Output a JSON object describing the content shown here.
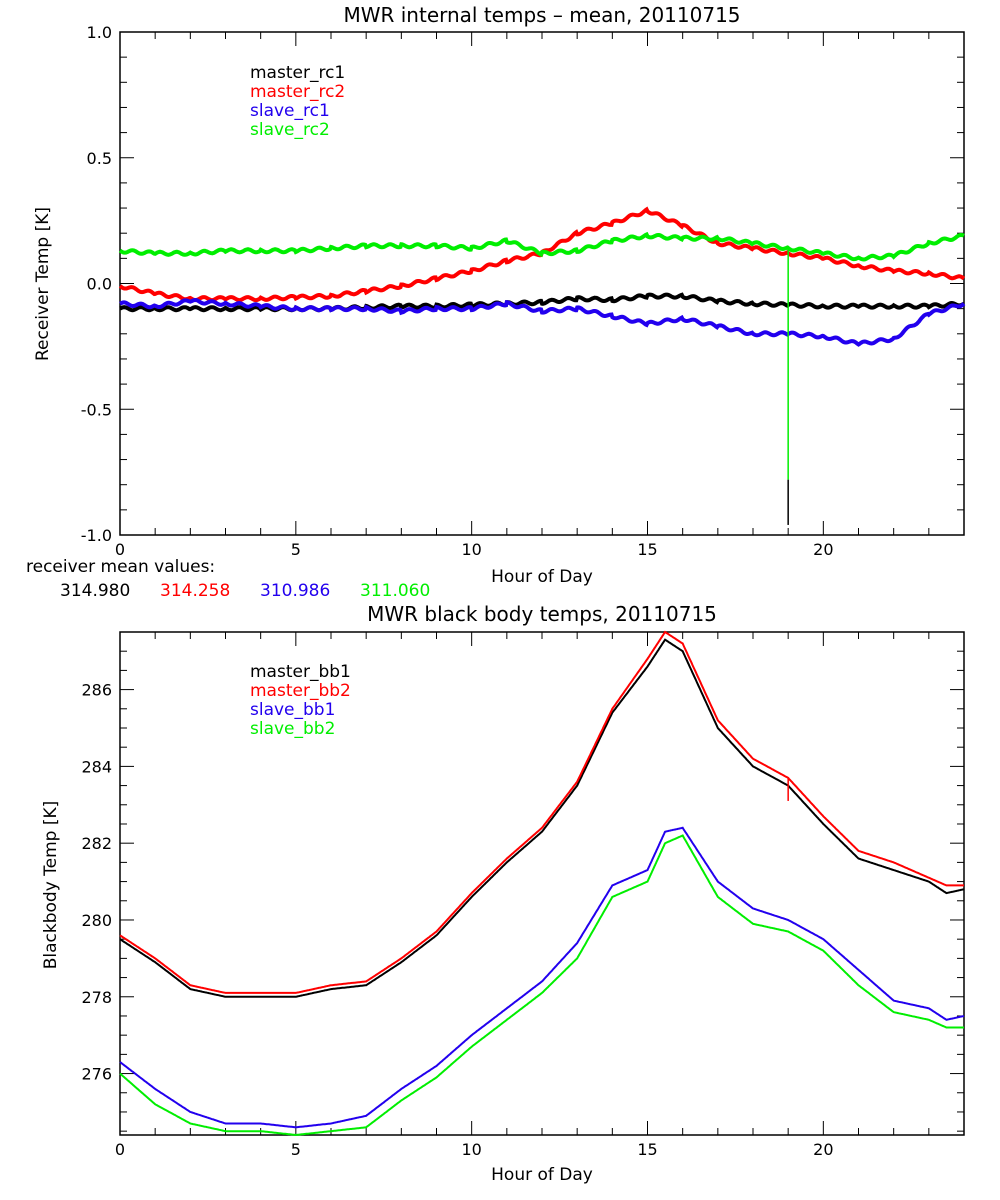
{
  "chart_data": [
    {
      "type": "line",
      "title": "MWR internal temps – mean, 20110715",
      "xlabel": "Hour of Day",
      "ylabel": "Receiver Temp [K]",
      "xlim": [
        0,
        24
      ],
      "ylim": [
        -1.0,
        1.0
      ],
      "xticks": [
        "0",
        "5",
        "10",
        "15",
        "20"
      ],
      "xtick_values": [
        0,
        5,
        10,
        15,
        20
      ],
      "yticks": [
        "-1.0",
        "-0.5",
        "0.0",
        "0.5",
        "1.0"
      ],
      "ytick_values": [
        -1.0,
        -0.5,
        0.0,
        0.5,
        1.0
      ],
      "grid": false,
      "legend_position": "top-left",
      "x": [
        0,
        1,
        2,
        3,
        4,
        5,
        6,
        7,
        8,
        9,
        10,
        11,
        12,
        13,
        14,
        15,
        16,
        17,
        18,
        19,
        20,
        21,
        22,
        23,
        24
      ],
      "series": [
        {
          "name": "master_rc1",
          "color": "#000000",
          "values": [
            -0.1,
            -0.1,
            -0.1,
            -0.1,
            -0.1,
            -0.1,
            -0.1,
            -0.095,
            -0.09,
            -0.09,
            -0.085,
            -0.08,
            -0.075,
            -0.06,
            -0.065,
            -0.05,
            -0.05,
            -0.07,
            -0.08,
            -0.085,
            -0.09,
            -0.09,
            -0.09,
            -0.09,
            -0.08
          ]
        },
        {
          "name": "master_rc2",
          "color": "#ff0000",
          "values": [
            -0.01,
            -0.04,
            -0.06,
            -0.06,
            -0.06,
            -0.055,
            -0.05,
            -0.03,
            -0.01,
            0.02,
            0.05,
            0.09,
            0.12,
            0.2,
            0.24,
            0.29,
            0.23,
            0.16,
            0.14,
            0.12,
            0.1,
            0.07,
            0.05,
            0.04,
            0.02
          ]
        },
        {
          "name": "slave_rc1",
          "color": "#2200ee",
          "values": [
            -0.08,
            -0.09,
            -0.07,
            -0.08,
            -0.09,
            -0.1,
            -0.1,
            -0.1,
            -0.11,
            -0.1,
            -0.1,
            -0.08,
            -0.11,
            -0.1,
            -0.13,
            -0.16,
            -0.14,
            -0.17,
            -0.2,
            -0.2,
            -0.21,
            -0.24,
            -0.22,
            -0.12,
            -0.08
          ]
        },
        {
          "name": "slave_rc2",
          "color": "#00ee00",
          "values": [
            0.13,
            0.12,
            0.12,
            0.13,
            0.13,
            0.13,
            0.14,
            0.15,
            0.15,
            0.15,
            0.14,
            0.17,
            0.12,
            0.13,
            0.17,
            0.19,
            0.18,
            0.18,
            0.16,
            0.14,
            0.12,
            0.1,
            0.11,
            0.16,
            0.19
          ]
        }
      ],
      "spike": {
        "x": 19.0,
        "color_series": [
          "slave_rc2",
          "master_rc1"
        ],
        "values": [
          0.15,
          -0.78,
          -0.96
        ]
      },
      "annotation_label": "receiver mean values:",
      "mean_values": [
        {
          "series": "master_rc1",
          "value": "314.980",
          "color": "#000000"
        },
        {
          "series": "master_rc2",
          "value": "314.258",
          "color": "#ff0000"
        },
        {
          "series": "slave_rc1",
          "value": "310.986",
          "color": "#2200ee"
        },
        {
          "series": "slave_rc2",
          "value": "311.060",
          "color": "#00ee00"
        }
      ]
    },
    {
      "type": "line",
      "title": "MWR black body temps, 20110715",
      "xlabel": "Hour of Day",
      "ylabel": "Blackbody Temp [K]",
      "xlim": [
        0,
        24
      ],
      "ylim": [
        274.4,
        287.5
      ],
      "xticks": [
        "0",
        "5",
        "10",
        "15",
        "20"
      ],
      "xtick_values": [
        0,
        5,
        10,
        15,
        20
      ],
      "yticks": [
        "276",
        "278",
        "280",
        "282",
        "284",
        "286"
      ],
      "ytick_values": [
        276,
        278,
        280,
        282,
        284,
        286
      ],
      "grid": false,
      "legend_position": "top-left",
      "x": [
        0,
        1,
        2,
        3,
        4,
        5,
        6,
        7,
        8,
        9,
        10,
        11,
        12,
        13,
        14,
        15,
        15.5,
        16,
        17,
        18,
        19,
        20,
        21,
        22,
        23,
        23.5,
        24
      ],
      "series": [
        {
          "name": "master_bb1",
          "color": "#000000",
          "values": [
            279.5,
            278.9,
            278.2,
            278.0,
            278.0,
            278.0,
            278.2,
            278.3,
            278.9,
            279.6,
            280.6,
            281.5,
            282.3,
            283.5,
            285.4,
            286.6,
            287.3,
            287.0,
            285.0,
            284.0,
            283.5,
            282.5,
            281.6,
            281.3,
            281.0,
            280.7,
            280.8
          ]
        },
        {
          "name": "master_bb2",
          "color": "#ff0000",
          "values": [
            279.6,
            279.0,
            278.3,
            278.1,
            278.1,
            278.1,
            278.3,
            278.4,
            279.0,
            279.7,
            280.7,
            281.6,
            282.4,
            283.6,
            285.5,
            286.8,
            287.5,
            287.2,
            285.2,
            284.2,
            283.7,
            282.7,
            281.8,
            281.5,
            281.1,
            280.9,
            280.9
          ]
        },
        {
          "name": "slave_bb1",
          "color": "#2200ee",
          "values": [
            276.3,
            275.6,
            275.0,
            274.7,
            274.7,
            274.6,
            274.7,
            274.9,
            275.6,
            276.2,
            277.0,
            277.7,
            278.4,
            279.4,
            280.9,
            281.3,
            282.3,
            282.4,
            281.0,
            280.3,
            280.0,
            279.5,
            278.7,
            277.9,
            277.7,
            277.4,
            277.5
          ]
        },
        {
          "name": "slave_bb2",
          "color": "#00ee00",
          "values": [
            276.0,
            275.2,
            274.7,
            274.5,
            274.5,
            274.4,
            274.5,
            274.6,
            275.3,
            275.9,
            276.7,
            277.4,
            278.1,
            279.0,
            280.6,
            281.0,
            282.0,
            282.2,
            280.6,
            279.9,
            279.7,
            279.2,
            278.3,
            277.6,
            277.4,
            277.2,
            277.2
          ]
        }
      ],
      "spike": {
        "x": 19.0,
        "color_series": [
          "master_bb2"
        ],
        "values": [
          283.7,
          283.1
        ]
      }
    }
  ]
}
